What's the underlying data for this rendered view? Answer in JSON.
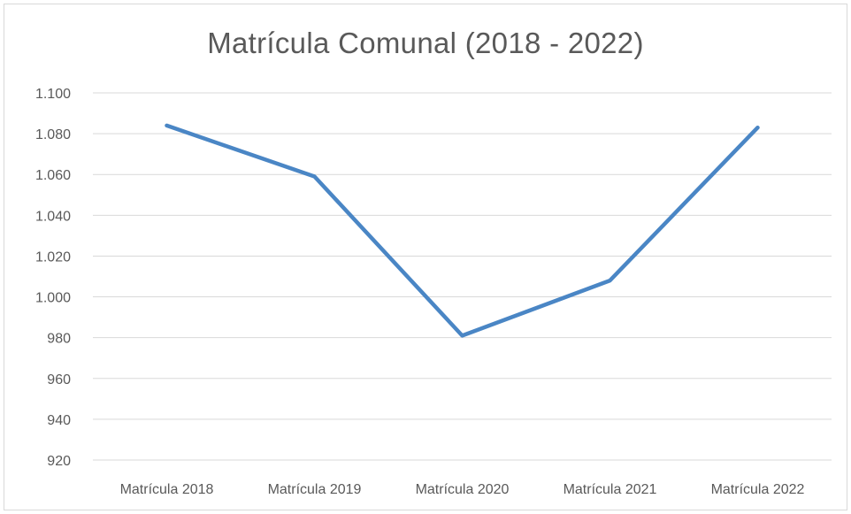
{
  "chart_data": {
    "type": "line",
    "title": "Matrícula Comunal (2018 - 2022)",
    "xlabel": "",
    "ylabel": "",
    "categories": [
      "Matrícula 2018",
      "Matrícula 2019",
      "Matrícula 2020",
      "Matrícula 2021",
      "Matrícula 2022"
    ],
    "series": [
      {
        "values": [
          1084,
          1059,
          981,
          1008,
          1083
        ]
      }
    ],
    "ylim": [
      920,
      1100
    ],
    "yticks": [
      920,
      940,
      960,
      980,
      1000,
      1020,
      1040,
      1060,
      1080,
      1100
    ],
    "ytick_labels": [
      "920",
      "940",
      "960",
      "980",
      "1.000",
      "1.020",
      "1.040",
      "1.060",
      "1.080",
      "1.100"
    ],
    "grid": true,
    "legend": "none",
    "colors": {
      "line": "#4a86c5",
      "grid": "#d9d9d9",
      "text": "#595959"
    }
  }
}
